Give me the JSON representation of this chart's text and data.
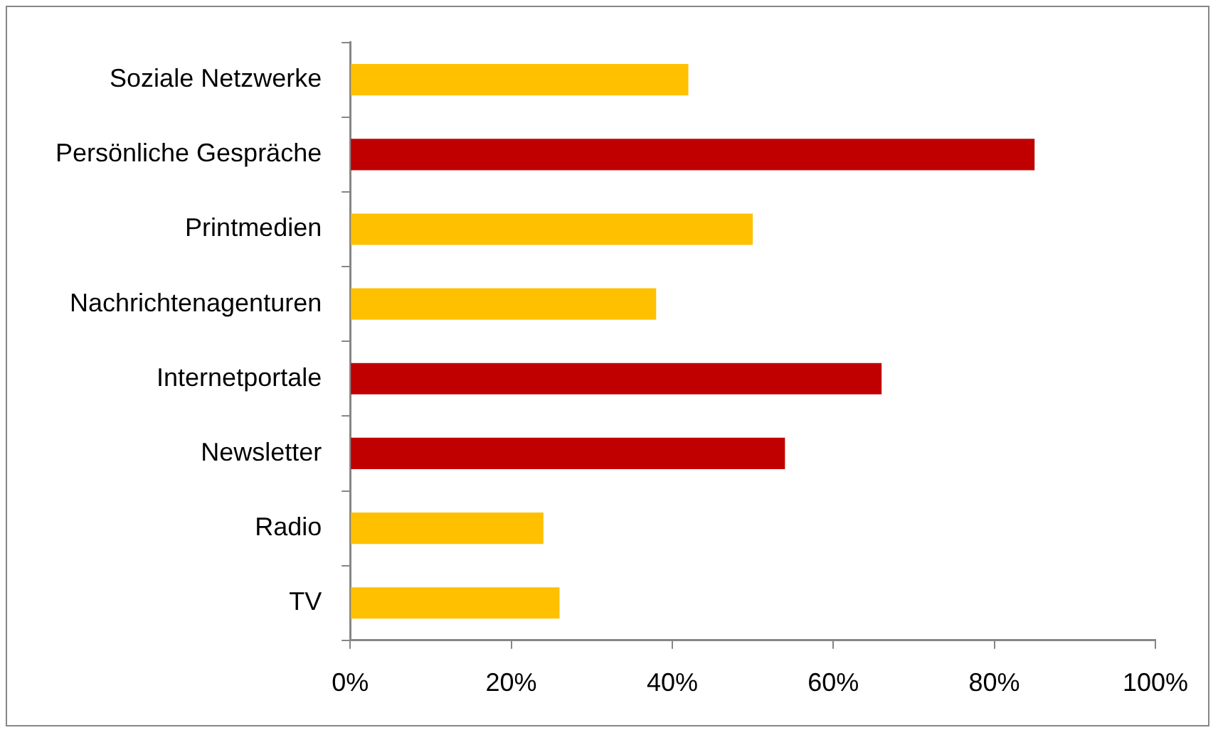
{
  "chart_data": {
    "type": "bar",
    "orientation": "horizontal",
    "categories": [
      "Soziale Netzwerke",
      "Persönliche Gespräche",
      "Printmedien",
      "Nachrichtenagenturen",
      "Internetportale",
      "Newsletter",
      "Radio",
      "TV"
    ],
    "values": [
      42,
      85,
      50,
      38,
      66,
      54,
      24,
      26
    ],
    "colors": [
      "#ffc000",
      "#c00000",
      "#ffc000",
      "#ffc000",
      "#c00000",
      "#c00000",
      "#ffc000",
      "#ffc000"
    ],
    "xlim": [
      0,
      100
    ],
    "xticks": [
      {
        "value": 0,
        "label": "0%"
      },
      {
        "value": 20,
        "label": "20%"
      },
      {
        "value": 40,
        "label": "40%"
      },
      {
        "value": 60,
        "label": "60%"
      },
      {
        "value": 80,
        "label": "80%"
      },
      {
        "value": 100,
        "label": "100%"
      }
    ],
    "grid": false,
    "legend": false
  }
}
